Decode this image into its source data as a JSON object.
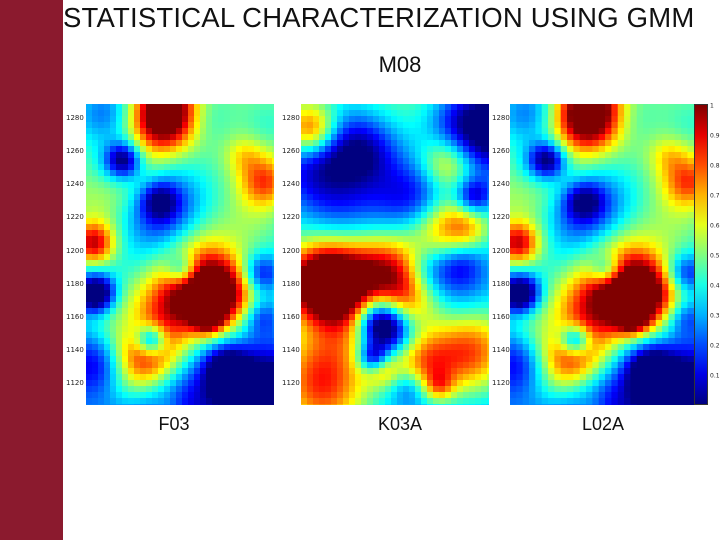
{
  "slide": {
    "title": "STATISTICAL CHARACTERIZATION USING GMM",
    "subtitle": "M08",
    "accent_color": "#8b1a2e"
  },
  "panels": [
    {
      "label": "F03",
      "seed": 3
    },
    {
      "label": "K03A",
      "seed": 11
    },
    {
      "label": "L02A",
      "seed": 3
    }
  ],
  "y_ticks": [
    "1280",
    "1260",
    "1240",
    "1220",
    "1200",
    "1180",
    "1160",
    "1140",
    "1120"
  ],
  "colorbar": {
    "colormap": "jet",
    "ticks": [
      "1",
      "0.9",
      "0.8",
      "0.7",
      "0.6",
      "0.5",
      "0.4",
      "0.3",
      "0.2",
      "0.1"
    ]
  }
}
